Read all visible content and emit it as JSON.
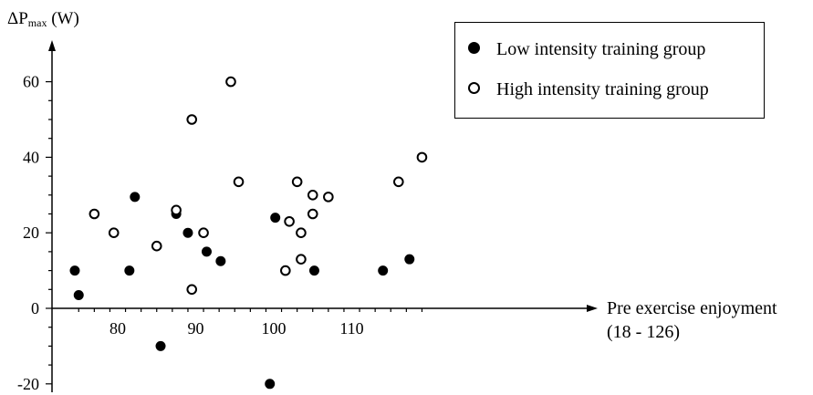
{
  "chart_data": {
    "type": "scatter",
    "title": "",
    "ylabel_main": "ΔP",
    "ylabel_sub": "max",
    "ylabel_unit": " (W)",
    "xlabel_line1": "Pre exercise enjoyment",
    "xlabel_line2": "(18 - 126)",
    "xlim": [
      73.5,
      120
    ],
    "ylim": [
      -22,
      68
    ],
    "x_ticks": [
      80,
      90,
      100,
      110
    ],
    "y_ticks": [
      -20,
      0,
      20,
      40,
      60
    ],
    "legend_position": "top-right",
    "grid": false,
    "series": [
      {
        "name": "Low intensity training group",
        "marker": "filled-circle",
        "points": [
          [
            74.5,
            10
          ],
          [
            75.0,
            3.5
          ],
          [
            81.5,
            10
          ],
          [
            82.2,
            29.5
          ],
          [
            85.5,
            -10
          ],
          [
            87.5,
            25
          ],
          [
            89.0,
            20
          ],
          [
            91.4,
            15
          ],
          [
            93.2,
            12.5
          ],
          [
            99.5,
            -20
          ],
          [
            100.2,
            24
          ],
          [
            105.2,
            10
          ],
          [
            114.0,
            10
          ],
          [
            117.4,
            13
          ]
        ]
      },
      {
        "name": "High intensity training group",
        "marker": "open-circle",
        "points": [
          [
            77.0,
            25
          ],
          [
            79.5,
            20
          ],
          [
            85.0,
            16.5
          ],
          [
            87.5,
            26
          ],
          [
            89.5,
            50
          ],
          [
            89.5,
            5
          ],
          [
            91.0,
            20
          ],
          [
            94.5,
            60
          ],
          [
            95.5,
            33.5
          ],
          [
            101.5,
            10
          ],
          [
            102.0,
            23
          ],
          [
            103.0,
            33.5
          ],
          [
            103.5,
            20
          ],
          [
            103.5,
            13
          ],
          [
            105.0,
            30
          ],
          [
            105.0,
            25
          ],
          [
            107.0,
            29.5
          ],
          [
            116.0,
            33.5
          ],
          [
            119.0,
            40
          ]
        ]
      }
    ]
  }
}
